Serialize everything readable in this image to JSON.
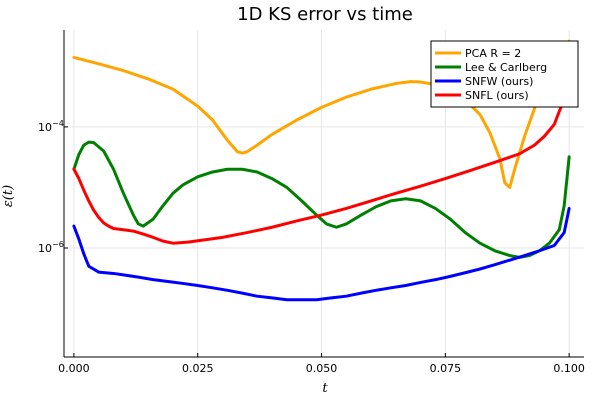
{
  "chart_data": {
    "type": "line",
    "title": "1D KS error vs time",
    "xlabel": "t",
    "ylabel": "ε(t)",
    "xlim": [
      -0.002,
      0.103
    ],
    "ylim_log10": [
      -7.8,
      -2.4
    ],
    "yscale": "log",
    "x_ticks": [
      {
        "value": 0.0,
        "label": "0.000"
      },
      {
        "value": 0.025,
        "label": "0.025"
      },
      {
        "value": 0.05,
        "label": "0.050"
      },
      {
        "value": 0.075,
        "label": "0.075"
      },
      {
        "value": 0.1,
        "label": "0.100"
      }
    ],
    "y_ticks": [
      {
        "exp": -6,
        "label": "10",
        "sup": "−6"
      },
      {
        "exp": -4,
        "label": "10",
        "sup": "−4"
      }
    ],
    "grid": true,
    "legend_position": "top-right",
    "series": [
      {
        "name": "PCA R = 2",
        "color": "#FFA500",
        "x": [
          0.0,
          0.005,
          0.01,
          0.015,
          0.02,
          0.025,
          0.028,
          0.031,
          0.033,
          0.034,
          0.035,
          0.037,
          0.04,
          0.045,
          0.05,
          0.055,
          0.06,
          0.065,
          0.068,
          0.07,
          0.073,
          0.076,
          0.079,
          0.082,
          0.084,
          0.086,
          0.087,
          0.088,
          0.089,
          0.091,
          0.093,
          0.095,
          0.097,
          0.099,
          0.1
        ],
        "y": [
          0.0014,
          0.0011,
          0.00085,
          0.00062,
          0.00042,
          0.00022,
          0.00013,
          6e-05,
          3.9e-05,
          3.7e-05,
          3.9e-05,
          5e-05,
          7.5e-05,
          0.00013,
          0.00021,
          0.00031,
          0.00042,
          0.00052,
          0.00056,
          0.00055,
          0.0005,
          0.0004,
          0.00028,
          0.00016,
          8e-05,
          3e-05,
          1.2e-05,
          1e-05,
          2e-05,
          7e-05,
          0.0002,
          0.00045,
          0.00085,
          0.0015,
          0.0026
        ]
      },
      {
        "name": "Lee & Carlberg",
        "color": "#008000",
        "x": [
          0.0,
          0.001,
          0.002,
          0.003,
          0.004,
          0.006,
          0.008,
          0.01,
          0.012,
          0.013,
          0.014,
          0.016,
          0.018,
          0.02,
          0.022,
          0.025,
          0.028,
          0.031,
          0.034,
          0.037,
          0.04,
          0.043,
          0.046,
          0.049,
          0.051,
          0.053,
          0.055,
          0.058,
          0.061,
          0.064,
          0.067,
          0.07,
          0.073,
          0.076,
          0.079,
          0.082,
          0.085,
          0.088,
          0.09,
          0.092,
          0.094,
          0.096,
          0.098,
          0.099,
          0.1
        ],
        "y": [
          2e-05,
          3.5e-05,
          5e-05,
          5.6e-05,
          5.5e-05,
          4e-05,
          2e-05,
          8e-06,
          3.5e-06,
          2.5e-06,
          2.3e-06,
          3e-06,
          5e-06,
          8e-06,
          1.1e-05,
          1.5e-05,
          1.8e-05,
          2e-05,
          2e-05,
          1.8e-05,
          1.4e-05,
          1e-05,
          6e-06,
          3.5e-06,
          2.5e-06,
          2.2e-06,
          2.5e-06,
          3.5e-06,
          4.8e-06,
          6e-06,
          6.5e-06,
          6e-06,
          4.5e-06,
          3e-06,
          1.8e-06,
          1.2e-06,
          9e-07,
          7.5e-07,
          7e-07,
          7.5e-07,
          9e-07,
          1.2e-06,
          2e-06,
          5e-06,
          3.2e-05
        ]
      },
      {
        "name": "SNFW (ours)",
        "color": "#0000FF",
        "x": [
          0.0,
          0.001,
          0.002,
          0.003,
          0.005,
          0.008,
          0.01,
          0.013,
          0.016,
          0.019,
          0.022,
          0.025,
          0.028,
          0.031,
          0.034,
          0.037,
          0.04,
          0.043,
          0.046,
          0.049,
          0.052,
          0.055,
          0.058,
          0.061,
          0.064,
          0.067,
          0.07,
          0.073,
          0.076,
          0.079,
          0.082,
          0.085,
          0.088,
          0.091,
          0.094,
          0.097,
          0.099,
          0.1
        ],
        "y": [
          2.3e-06,
          1.4e-06,
          8e-07,
          5e-07,
          4e-07,
          3.8e-07,
          3.6e-07,
          3.3e-07,
          3e-07,
          2.8e-07,
          2.6e-07,
          2.4e-07,
          2.2e-07,
          2e-07,
          1.8e-07,
          1.6e-07,
          1.5e-07,
          1.4e-07,
          1.4e-07,
          1.4e-07,
          1.5e-07,
          1.6e-07,
          1.8e-07,
          2e-07,
          2.2e-07,
          2.4e-07,
          2.7e-07,
          3e-07,
          3.4e-07,
          3.9e-07,
          4.5e-07,
          5.3e-07,
          6.3e-07,
          7.5e-07,
          9e-07,
          1.1e-06,
          1.8e-06,
          4.5e-06
        ]
      },
      {
        "name": "SNFL (ours)",
        "color": "#FF0000",
        "x": [
          0.0,
          0.001,
          0.002,
          0.003,
          0.004,
          0.005,
          0.006,
          0.007,
          0.008,
          0.01,
          0.012,
          0.014,
          0.016,
          0.018,
          0.02,
          0.023,
          0.026,
          0.03,
          0.035,
          0.04,
          0.045,
          0.05,
          0.055,
          0.06,
          0.065,
          0.07,
          0.075,
          0.08,
          0.085,
          0.09,
          0.093,
          0.095,
          0.097,
          0.098,
          0.099,
          0.1
        ],
        "y": [
          2e-05,
          1.4e-05,
          9e-06,
          6e-06,
          4.2e-06,
          3.2e-06,
          2.6e-06,
          2.3e-06,
          2.1e-06,
          2e-06,
          1.9e-06,
          1.7e-06,
          1.5e-06,
          1.3e-06,
          1.2e-06,
          1.25e-06,
          1.35e-06,
          1.5e-06,
          1.8e-06,
          2.2e-06,
          2.8e-06,
          3.5e-06,
          4.5e-06,
          6e-06,
          8e-06,
          1.05e-05,
          1.4e-05,
          1.9e-05,
          2.6e-05,
          3.6e-05,
          5e-05,
          7e-05,
          0.00011,
          0.00018,
          0.00028,
          0.00048
        ]
      }
    ]
  }
}
